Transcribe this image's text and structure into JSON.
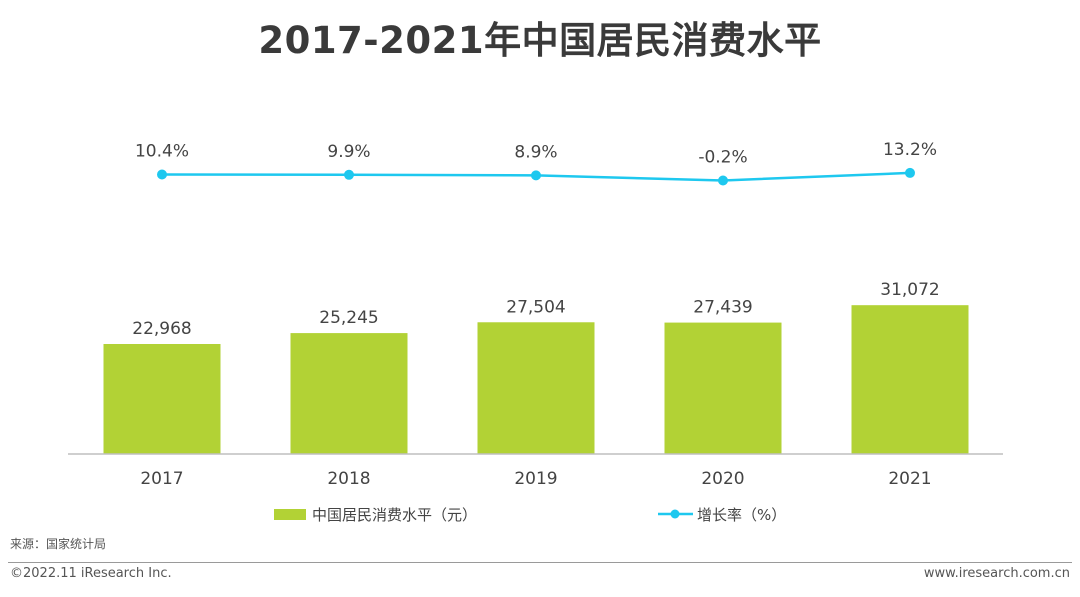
{
  "title": "2017-2021年中国居民消费水平",
  "source": "来源：国家统计局",
  "footer": {
    "copyright": "©2022.11 iResearch Inc.",
    "website": "www.iresearch.com.cn"
  },
  "colors": {
    "bar": "#b2d235",
    "line": "#1ec8ef",
    "axis": "#bfbfbf"
  },
  "chart_data": {
    "type": "bar",
    "categories": [
      "2017",
      "2018",
      "2019",
      "2020",
      "2021"
    ],
    "series": [
      {
        "name": "中国居民消费水平（元）",
        "type": "bar",
        "values": [
          22968,
          25245,
          27504,
          27439,
          31072
        ],
        "labels": [
          "22,968",
          "25,245",
          "27,504",
          "27,439",
          "31,072"
        ]
      },
      {
        "name": "增长率（%）",
        "type": "line",
        "values": [
          10.4,
          9.9,
          8.9,
          -0.2,
          13.2
        ],
        "labels": [
          "10.4%",
          "9.9%",
          "8.9%",
          "-0.2%",
          "13.2%"
        ]
      }
    ],
    "legend_position": "bottom"
  }
}
